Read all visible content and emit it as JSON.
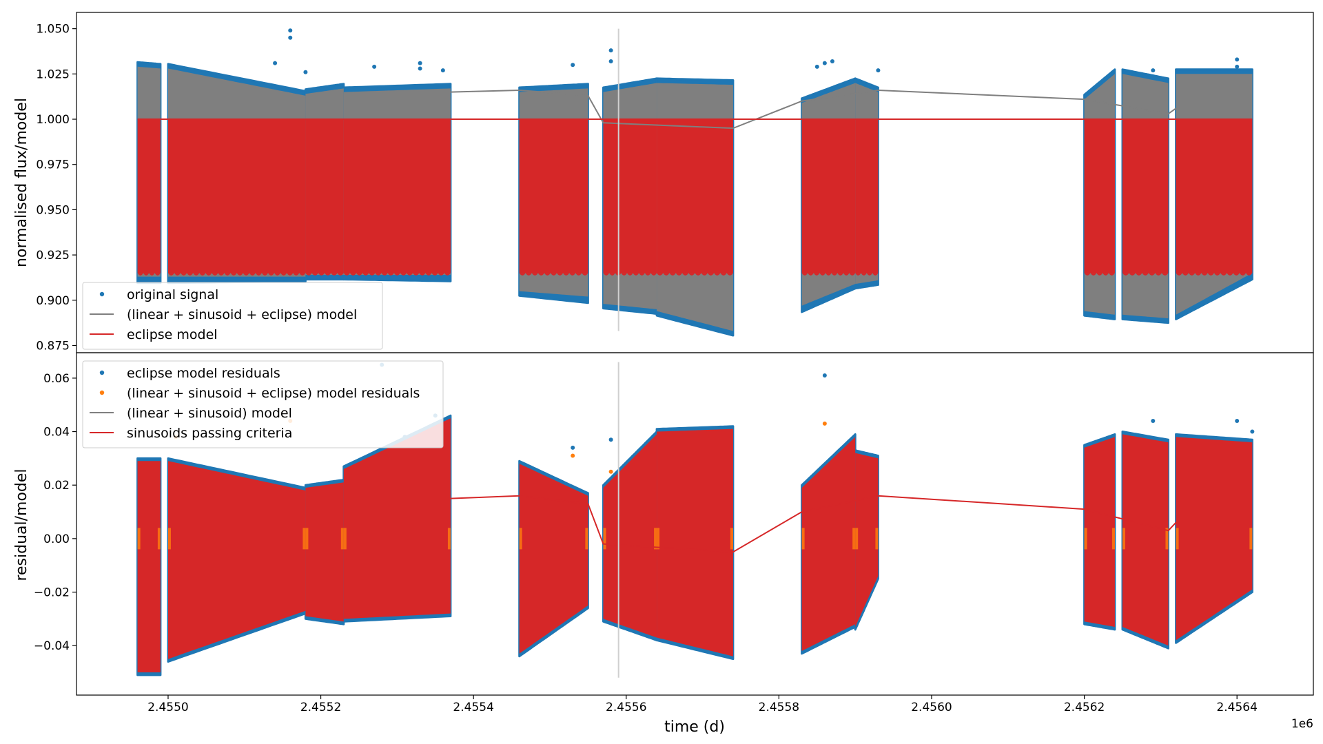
{
  "figure": {
    "xlabel": "time (d)",
    "x_offset_label": "1e6",
    "xlim": [
      2.45488,
      2.4565
    ],
    "x_ticks": [
      {
        "value": 2.455,
        "label": "2.4550"
      },
      {
        "value": 2.4552,
        "label": "2.4552"
      },
      {
        "value": 2.4554,
        "label": "2.4554"
      },
      {
        "value": 2.4556,
        "label": "2.4556"
      },
      {
        "value": 2.4558,
        "label": "2.4558"
      },
      {
        "value": 2.456,
        "label": "2.4560"
      },
      {
        "value": 2.4562,
        "label": "2.4562"
      },
      {
        "value": 2.4564,
        "label": "2.4564"
      }
    ],
    "colors": {
      "blue": "#1f77b4",
      "orange": "#ff7f0e",
      "gray": "#7f7f7f",
      "red": "#d62728",
      "vline": "#d0d0d0"
    }
  },
  "chart_data": [
    {
      "type": "scatter",
      "ylabel": "normalised flux/model",
      "ylim": [
        0.871,
        1.059
      ],
      "y_ticks": [
        {
          "value": 0.875,
          "label": "0.875"
        },
        {
          "value": 0.9,
          "label": "0.900"
        },
        {
          "value": 0.925,
          "label": "0.925"
        },
        {
          "value": 0.95,
          "label": "0.950"
        },
        {
          "value": 0.975,
          "label": "0.975"
        },
        {
          "value": 1.0,
          "label": "1.000"
        },
        {
          "value": 1.025,
          "label": "1.025"
        },
        {
          "value": 1.05,
          "label": "1.050"
        }
      ],
      "legend_position": "lower-left",
      "legend": [
        {
          "label": "original signal",
          "kind": "marker",
          "color": "#1f77b4"
        },
        {
          "label": "(linear + sinusoid + eclipse) model",
          "kind": "line",
          "color": "#7f7f7f"
        },
        {
          "label": "eclipse model",
          "kind": "line",
          "color": "#d62728"
        }
      ],
      "segments": [
        {
          "x": [
            2.45496,
            2.45499
          ],
          "original_top": [
            1.03,
            1.029
          ],
          "original_bottom": [
            0.911,
            0.911
          ],
          "model_top": [
            1.029,
            1.028
          ],
          "model_bottom": [
            0.913,
            0.913
          ],
          "eclipse_min": 0.915
        },
        {
          "x": [
            2.455,
            2.45518
          ],
          "original_top": [
            1.029,
            1.014
          ],
          "original_bottom": [
            0.911,
            0.912
          ],
          "model_top": [
            1.028,
            1.013
          ],
          "model_bottom": [
            0.913,
            0.913
          ],
          "eclipse_min": 0.915
        },
        {
          "x": [
            2.45518,
            2.45523
          ],
          "original_top": [
            1.015,
            1.018
          ],
          "original_bottom": [
            0.913,
            0.913
          ],
          "model_top": [
            1.014,
            1.017
          ],
          "model_bottom": [
            0.914,
            0.914
          ],
          "eclipse_min": 0.915
        },
        {
          "x": [
            2.45523,
            2.45537
          ],
          "original_top": [
            1.016,
            1.018
          ],
          "original_bottom": [
            0.913,
            0.912
          ],
          "model_top": [
            1.015,
            1.017
          ],
          "model_bottom": [
            0.914,
            0.914
          ],
          "eclipse_min": 0.915
        },
        {
          "x": [
            2.45546,
            2.45555
          ],
          "original_top": [
            1.016,
            1.018
          ],
          "original_bottom": [
            0.904,
            0.9
          ],
          "model_top": [
            1.015,
            1.017
          ],
          "model_bottom": [
            0.905,
            0.902
          ],
          "eclipse_min": 0.915
        },
        {
          "x": [
            2.45557,
            2.45564
          ],
          "original_top": [
            1.016,
            1.021
          ],
          "original_bottom": [
            0.897,
            0.894
          ],
          "model_top": [
            1.015,
            1.02
          ],
          "model_bottom": [
            0.898,
            0.895
          ],
          "eclipse_min": 0.915
        },
        {
          "x": [
            2.45564,
            2.45574
          ],
          "original_top": [
            1.021,
            1.02
          ],
          "original_bottom": [
            0.893,
            0.882
          ],
          "model_top": [
            1.02,
            1.019
          ],
          "model_bottom": [
            0.894,
            0.883
          ],
          "eclipse_min": 0.915
        },
        {
          "x": [
            2.45583,
            2.4559
          ],
          "original_top": [
            1.01,
            1.021
          ],
          "original_bottom": [
            0.895,
            0.908
          ],
          "model_top": [
            1.009,
            1.02
          ],
          "model_bottom": [
            0.897,
            0.909
          ],
          "eclipse_min": 0.915
        },
        {
          "x": [
            2.4559,
            2.45593
          ],
          "original_top": [
            1.021,
            1.016
          ],
          "original_bottom": [
            0.908,
            0.91
          ],
          "model_top": [
            1.02,
            1.015
          ],
          "model_bottom": [
            0.909,
            0.911
          ],
          "eclipse_min": 0.915
        },
        {
          "x": [
            2.4562,
            2.45624
          ],
          "original_top": [
            1.012,
            1.026
          ],
          "original_bottom": [
            0.893,
            0.891
          ],
          "model_top": [
            1.011,
            1.025
          ],
          "model_bottom": [
            0.894,
            0.892
          ],
          "eclipse_min": 0.915
        },
        {
          "x": [
            2.45625,
            2.45631
          ],
          "original_top": [
            1.026,
            1.021
          ],
          "original_bottom": [
            0.891,
            0.889
          ],
          "model_top": [
            1.025,
            1.02
          ],
          "model_bottom": [
            0.892,
            0.89
          ],
          "eclipse_min": 0.915
        },
        {
          "x": [
            2.45632,
            2.45642
          ],
          "original_top": [
            1.026,
            1.026
          ],
          "original_bottom": [
            0.891,
            0.913
          ],
          "model_top": [
            1.025,
            1.025
          ],
          "model_bottom": [
            0.892,
            0.915
          ],
          "eclipse_min": 0.915
        }
      ],
      "trend_line": {
        "x": [
          2.45537,
          2.45546,
          2.45555,
          2.45557,
          2.45574,
          2.45583,
          2.45593,
          2.4562,
          2.45631,
          2.45632
        ],
        "y": [
          1.015,
          1.016,
          1.013,
          0.998,
          0.995,
          1.01,
          1.016,
          1.011,
          1.003,
          1.006
        ]
      },
      "eclipse_model_line": {
        "x": [
          2.45496,
          2.45642
        ],
        "y": [
          1.0,
          1.0
        ]
      },
      "outliers": [
        {
          "x": 2.45516,
          "y": 1.049
        },
        {
          "x": 2.45516,
          "y": 1.045
        },
        {
          "x": 2.45514,
          "y": 1.031
        },
        {
          "x": 2.45518,
          "y": 1.026
        },
        {
          "x": 2.45527,
          "y": 1.029
        },
        {
          "x": 2.45533,
          "y": 1.028
        },
        {
          "x": 2.45533,
          "y": 1.031
        },
        {
          "x": 2.45536,
          "y": 1.027
        },
        {
          "x": 2.45553,
          "y": 1.03
        },
        {
          "x": 2.45558,
          "y": 1.038
        },
        {
          "x": 2.45558,
          "y": 1.032
        },
        {
          "x": 2.45585,
          "y": 1.029
        },
        {
          "x": 2.45586,
          "y": 1.031
        },
        {
          "x": 2.45587,
          "y": 1.032
        },
        {
          "x": 2.45593,
          "y": 1.027
        },
        {
          "x": 2.45629,
          "y": 1.027
        },
        {
          "x": 2.4564,
          "y": 1.033
        },
        {
          "x": 2.4564,
          "y": 1.029
        }
      ],
      "vertical_line": {
        "x": 2.45559,
        "y": [
          0.883,
          1.05
        ]
      }
    },
    {
      "type": "scatter",
      "ylabel": "residual/model",
      "ylim": [
        -0.0585,
        0.0695
      ],
      "y_ticks": [
        {
          "value": -0.04,
          "label": "−0.04"
        },
        {
          "value": -0.02,
          "label": "−0.02"
        },
        {
          "value": 0.0,
          "label": "0.00"
        },
        {
          "value": 0.02,
          "label": "0.02"
        },
        {
          "value": 0.04,
          "label": "0.04"
        },
        {
          "value": 0.06,
          "label": "0.06"
        }
      ],
      "legend_position": "upper-left",
      "legend": [
        {
          "label": "eclipse model residuals",
          "kind": "marker",
          "color": "#1f77b4"
        },
        {
          "label": "(linear + sinusoid + eclipse) model residuals",
          "kind": "marker",
          "color": "#ff7f0e"
        },
        {
          "label": "(linear + sinusoid) model",
          "kind": "line",
          "color": "#7f7f7f"
        },
        {
          "label": "sinusoids passing criteria",
          "kind": "line",
          "color": "#d62728"
        }
      ],
      "segments": [
        {
          "x": [
            2.45496,
            2.45499
          ],
          "top": [
            0.029,
            0.029
          ],
          "bottom": [
            -0.05,
            -0.05
          ]
        },
        {
          "x": [
            2.455,
            2.45518
          ],
          "top": [
            0.029,
            0.018
          ],
          "bottom": [
            -0.045,
            -0.027
          ]
        },
        {
          "x": [
            2.45518,
            2.45523
          ],
          "top": [
            0.019,
            0.021
          ],
          "bottom": [
            -0.029,
            -0.031
          ]
        },
        {
          "x": [
            2.45523,
            2.45537
          ],
          "top": [
            0.026,
            0.045
          ],
          "bottom": [
            -0.03,
            -0.028
          ]
        },
        {
          "x": [
            2.45546,
            2.45555
          ],
          "top": [
            0.028,
            0.016
          ],
          "bottom": [
            -0.043,
            -0.025
          ]
        },
        {
          "x": [
            2.45557,
            2.45564
          ],
          "top": [
            0.019,
            0.039
          ],
          "bottom": [
            -0.03,
            -0.037
          ]
        },
        {
          "x": [
            2.45564,
            2.45574
          ],
          "top": [
            0.04,
            0.041
          ],
          "bottom": [
            -0.037,
            -0.044
          ]
        },
        {
          "x": [
            2.45583,
            2.4559
          ],
          "top": [
            0.019,
            0.038
          ],
          "bottom": [
            -0.042,
            -0.032
          ]
        },
        {
          "x": [
            2.4559,
            2.45593
          ],
          "top": [
            0.032,
            0.03
          ],
          "bottom": [
            -0.033,
            -0.014
          ]
        },
        {
          "x": [
            2.4562,
            2.45624
          ],
          "top": [
            0.034,
            0.038
          ],
          "bottom": [
            -0.031,
            -0.033
          ]
        },
        {
          "x": [
            2.45625,
            2.45631
          ],
          "top": [
            0.039,
            0.036
          ],
          "bottom": [
            -0.033,
            -0.04
          ]
        },
        {
          "x": [
            2.45632,
            2.45642
          ],
          "top": [
            0.038,
            0.036
          ],
          "bottom": [
            -0.038,
            -0.019
          ]
        }
      ],
      "trend_line": {
        "x": [
          2.45537,
          2.45546,
          2.45555,
          2.45557,
          2.45574,
          2.45583,
          2.45593,
          2.4562,
          2.45631,
          2.45632
        ],
        "y": [
          0.015,
          0.016,
          0.013,
          -0.002,
          -0.005,
          0.01,
          0.016,
          0.011,
          0.003,
          0.006
        ]
      },
      "residual_band": {
        "y": [
          -0.004,
          0.004
        ]
      },
      "outliers_blue": [
        {
          "x": 2.45586,
          "y": 0.061
        },
        {
          "x": 2.45528,
          "y": 0.065
        },
        {
          "x": 2.45558,
          "y": 0.037
        },
        {
          "x": 2.45553,
          "y": 0.034
        },
        {
          "x": 2.45629,
          "y": 0.044
        },
        {
          "x": 2.4564,
          "y": 0.044
        },
        {
          "x": 2.45642,
          "y": 0.04
        },
        {
          "x": 2.45535,
          "y": 0.046
        },
        {
          "x": 2.45531,
          "y": 0.038
        }
      ],
      "outliers_orange": [
        {
          "x": 2.45586,
          "y": 0.043
        },
        {
          "x": 2.45558,
          "y": 0.025
        },
        {
          "x": 2.45553,
          "y": 0.031
        },
        {
          "x": 2.45516,
          "y": 0.044
        },
        {
          "x": 2.45501,
          "y": 0.038
        }
      ],
      "vertical_line": {
        "x": 2.45559,
        "y": [
          -0.052,
          0.066
        ]
      }
    }
  ]
}
